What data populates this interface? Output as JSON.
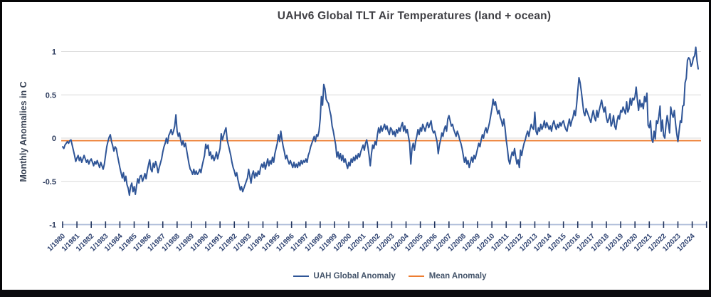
{
  "chart_data": {
    "type": "line",
    "title": "UAHv6 Global TLT Air Temperatures (land + ocean)",
    "ylabel": "Monthly Anomalies in C",
    "xlabel": "",
    "ylim": [
      -1,
      1
    ],
    "y_tick_labels": [
      "1",
      "0.5",
      "0",
      "-0.5",
      "-1"
    ],
    "y_tick_values": [
      1,
      0.5,
      0,
      -0.5,
      -1
    ],
    "grid": "horizontal",
    "legend_position": "bottom",
    "background": "#FFFFFF",
    "x_start": "1/1980",
    "x_end": "6/2024",
    "x_interval": "monthly",
    "x_tick_labels": [
      "1/1980",
      "1/1981",
      "1/1982",
      "1/1983",
      "1/1984",
      "1/1985",
      "1/1986",
      "1/1987",
      "1/1988",
      "1/1989",
      "1/1990",
      "1/1991",
      "1/1992",
      "1/1993",
      "1/1994",
      "1/1995",
      "1/1996",
      "1/1997",
      "1/1998",
      "1/1999",
      "1/2000",
      "1/2001",
      "1/2002",
      "1/2003",
      "1/2004",
      "1/2005",
      "1/2006",
      "1/2007",
      "1/2008",
      "1/2009",
      "1/2010",
      "1/2011",
      "1/2012",
      "1/2013",
      "1/2014",
      "1/2015",
      "1/2016",
      "1/2017",
      "1/2018",
      "1/2019",
      "1/2020",
      "1/2021",
      "1/2022",
      "1/2023",
      "1/2024"
    ],
    "mean_line_value": -0.03,
    "series": [
      {
        "name": "UAH Global Anomaly",
        "color": "#2F5597",
        "values": [
          -0.1,
          -0.12,
          -0.08,
          -0.06,
          -0.04,
          -0.06,
          -0.03,
          -0.02,
          -0.08,
          -0.14,
          -0.2,
          -0.27,
          -0.23,
          -0.2,
          -0.26,
          -0.22,
          -0.28,
          -0.24,
          -0.2,
          -0.24,
          -0.28,
          -0.25,
          -0.3,
          -0.26,
          -0.24,
          -0.28,
          -0.32,
          -0.27,
          -0.3,
          -0.26,
          -0.3,
          -0.34,
          -0.28,
          -0.32,
          -0.36,
          -0.3,
          -0.2,
          -0.1,
          -0.04,
          0.01,
          0.04,
          -0.04,
          -0.09,
          -0.15,
          -0.1,
          -0.12,
          -0.2,
          -0.27,
          -0.34,
          -0.4,
          -0.46,
          -0.4,
          -0.5,
          -0.44,
          -0.54,
          -0.58,
          -0.66,
          -0.56,
          -0.52,
          -0.62,
          -0.56,
          -0.65,
          -0.55,
          -0.47,
          -0.52,
          -0.44,
          -0.43,
          -0.5,
          -0.46,
          -0.41,
          -0.47,
          -0.38,
          -0.31,
          -0.25,
          -0.36,
          -0.39,
          -0.29,
          -0.34,
          -0.27,
          -0.32,
          -0.4,
          -0.34,
          -0.29,
          -0.24,
          -0.16,
          -0.1,
          -0.06,
          0.0,
          -0.06,
          0.03,
          0.06,
          0.1,
          0.04,
          0.08,
          0.14,
          0.27,
          0.08,
          0.02,
          0.06,
          -0.02,
          -0.08,
          -0.03,
          -0.1,
          -0.06,
          -0.14,
          -0.22,
          -0.3,
          -0.36,
          -0.38,
          -0.42,
          -0.36,
          -0.42,
          -0.38,
          -0.42,
          -0.4,
          -0.36,
          -0.4,
          -0.32,
          -0.26,
          -0.2,
          -0.07,
          -0.12,
          -0.08,
          -0.2,
          -0.16,
          -0.24,
          -0.2,
          -0.26,
          -0.22,
          -0.16,
          -0.24,
          -0.18,
          -0.12,
          0.05,
          -0.02,
          0.03,
          0.08,
          0.12,
          -0.02,
          -0.08,
          -0.14,
          -0.2,
          -0.28,
          -0.34,
          -0.38,
          -0.44,
          -0.4,
          -0.48,
          -0.54,
          -0.6,
          -0.56,
          -0.62,
          -0.58,
          -0.54,
          -0.5,
          -0.46,
          -0.36,
          -0.44,
          -0.52,
          -0.42,
          -0.38,
          -0.46,
          -0.4,
          -0.44,
          -0.38,
          -0.42,
          -0.34,
          -0.3,
          -0.34,
          -0.28,
          -0.36,
          -0.3,
          -0.24,
          -0.32,
          -0.26,
          -0.3,
          -0.22,
          -0.28,
          -0.18,
          -0.12,
          -0.06,
          0.04,
          -0.04,
          0.08,
          -0.02,
          -0.1,
          -0.16,
          -0.24,
          -0.2,
          -0.26,
          -0.3,
          -0.26,
          -0.3,
          -0.34,
          -0.28,
          -0.34,
          -0.3,
          -0.34,
          -0.28,
          -0.32,
          -0.26,
          -0.3,
          -0.26,
          -0.28,
          -0.24,
          -0.28,
          -0.2,
          -0.16,
          -0.1,
          -0.06,
          -0.02,
          0.02,
          -0.04,
          0.04,
          0.02,
          0.08,
          0.22,
          0.48,
          0.38,
          0.62,
          0.57,
          0.45,
          0.42,
          0.4,
          0.32,
          0.26,
          0.14,
          0.08,
          0.0,
          -0.08,
          -0.22,
          -0.16,
          -0.24,
          -0.18,
          -0.26,
          -0.2,
          -0.28,
          -0.24,
          -0.3,
          -0.35,
          -0.28,
          -0.32,
          -0.24,
          -0.28,
          -0.22,
          -0.26,
          -0.2,
          -0.24,
          -0.18,
          -0.22,
          -0.16,
          -0.12,
          -0.08,
          -0.14,
          -0.06,
          -0.02,
          -0.1,
          -0.2,
          -0.32,
          -0.18,
          -0.08,
          -0.12,
          -0.04,
          -0.08,
          0.04,
          0.12,
          0.06,
          0.14,
          0.08,
          0.12,
          0.16,
          0.1,
          0.14,
          0.08,
          0.04,
          0.12,
          0.1,
          0.04,
          0.08,
          0.02,
          0.1,
          0.06,
          0.12,
          0.08,
          0.14,
          0.18,
          0.08,
          0.14,
          0.06,
          0.1,
          0.02,
          -0.06,
          -0.3,
          -0.12,
          -0.06,
          -0.14,
          -0.04,
          0.02,
          0.1,
          0.04,
          0.12,
          0.08,
          0.16,
          0.12,
          0.08,
          0.14,
          0.18,
          0.12,
          0.16,
          0.2,
          0.1,
          0.06,
          0.08,
          0.02,
          -0.04,
          -0.18,
          -0.08,
          -0.02,
          0.06,
          0.02,
          0.1,
          0.14,
          0.08,
          0.22,
          0.26,
          0.2,
          0.14,
          0.16,
          0.1,
          0.06,
          0.02,
          0.08,
          0.04,
          -0.02,
          -0.06,
          -0.12,
          -0.2,
          -0.28,
          -0.22,
          -0.3,
          -0.26,
          -0.34,
          -0.28,
          -0.22,
          -0.28,
          -0.2,
          -0.24,
          -0.18,
          -0.12,
          -0.06,
          -0.1,
          -0.02,
          0.04,
          0.0,
          0.08,
          0.12,
          0.06,
          0.12,
          0.18,
          0.26,
          0.34,
          0.45,
          0.38,
          0.42,
          0.34,
          0.28,
          0.32,
          0.24,
          0.2,
          0.14,
          0.22,
          0.12,
          -0.02,
          -0.12,
          -0.25,
          -0.3,
          -0.22,
          -0.16,
          -0.2,
          -0.12,
          -0.22,
          -0.3,
          -0.25,
          -0.34,
          -0.14,
          -0.2,
          -0.12,
          -0.06,
          -0.02,
          0.04,
          0.08,
          0.02,
          0.1,
          0.16,
          0.12,
          0.1,
          0.3,
          0.08,
          0.04,
          0.12,
          0.08,
          0.16,
          0.1,
          0.14,
          0.2,
          0.12,
          0.18,
          0.14,
          0.1,
          0.14,
          0.08,
          0.16,
          0.2,
          0.14,
          0.1,
          0.16,
          0.12,
          0.18,
          0.14,
          0.18,
          0.2,
          0.14,
          0.1,
          0.08,
          0.16,
          0.22,
          0.14,
          0.2,
          0.24,
          0.32,
          0.26,
          0.38,
          0.54,
          0.7,
          0.64,
          0.54,
          0.42,
          0.3,
          0.26,
          0.34,
          0.3,
          0.26,
          0.22,
          0.18,
          0.26,
          0.32,
          0.24,
          0.2,
          0.32,
          0.24,
          0.32,
          0.38,
          0.44,
          0.36,
          0.3,
          0.36,
          0.24,
          0.18,
          0.22,
          0.28,
          0.14,
          0.18,
          0.26,
          0.14,
          0.1,
          0.2,
          0.26,
          0.22,
          0.32,
          0.3,
          0.36,
          0.32,
          0.28,
          0.42,
          0.3,
          0.34,
          0.46,
          0.38,
          0.46,
          0.44,
          0.48,
          0.59,
          0.44,
          0.32,
          0.44,
          0.36,
          0.4,
          0.34,
          0.48,
          0.42,
          0.52,
          0.15,
          0.12,
          0.2,
          -0.01,
          -0.05,
          0.08,
          -0.01,
          0.2,
          0.17,
          0.25,
          0.37,
          0.08,
          0.21,
          0.03,
          0.0,
          0.15,
          0.26,
          0.17,
          0.06,
          0.36,
          0.28,
          0.24,
          0.32,
          0.17,
          0.05,
          -0.04,
          0.08,
          0.2,
          0.18,
          0.37,
          0.38,
          0.64,
          0.69,
          0.9,
          0.93,
          0.91,
          0.83,
          0.86,
          0.93,
          0.95,
          1.05,
          0.9,
          0.8
        ]
      },
      {
        "name": "Mean Anomaly",
        "color": "#ED7D31",
        "value": -0.03
      }
    ],
    "colors": {
      "gridline": "#D9D9D9",
      "axis_line": "#AEBCD8",
      "axis_tick": "#24365E",
      "tick_label": "#2E4270",
      "title_text": "#3F3F44",
      "legend_text": "#44546A"
    }
  }
}
